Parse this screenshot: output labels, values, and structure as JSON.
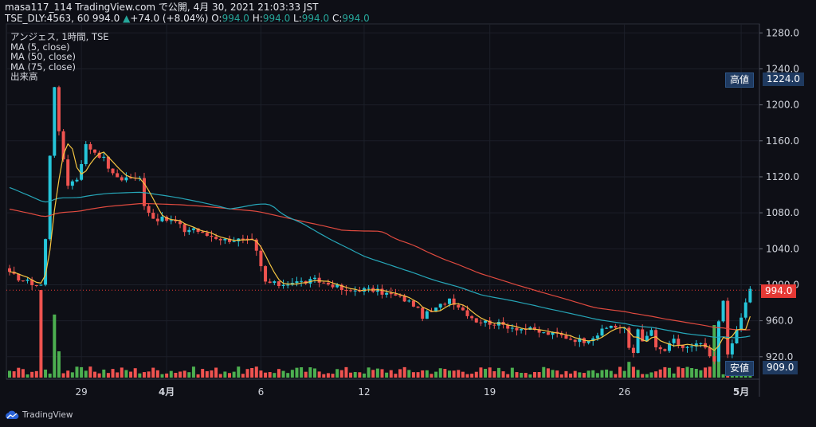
{
  "header": {
    "line1": "masa117_114 TradingView.com で公開, 4月 30, 2021 21:03:33 JST",
    "symbol": "TSE_DLY:4563, 60",
    "price": "994.0",
    "change": "+74.0 (+8.04%)",
    "o_label": "O:",
    "o": "994.0",
    "h_label": "H:",
    "h": "994.0",
    "l_label": "L:",
    "l": "994.0",
    "c_label": "C:",
    "c": "994.0"
  },
  "legend": {
    "title": "アンジェス, 1時間, TSE",
    "ma5": "MA (5, close)",
    "ma50": "MA (50, close)",
    "ma75": "MA (75, close)",
    "volume": "出来高"
  },
  "tags": {
    "high_label": "高値",
    "high_value": "1224.0",
    "current_value": "994.0",
    "low_label": "安値",
    "low_value": "909.0"
  },
  "brand": "TradingView",
  "colors": {
    "background": "#0e0f16",
    "up": "#26c6da",
    "down": "#ef5350",
    "vol_up": "#4caf50",
    "vol_down": "#ef5350",
    "ma5": "#f5c542",
    "ma50": "#26a6b8",
    "ma75": "#e04a3f"
  },
  "chart_data": {
    "type": "candlestick",
    "ylim": [
      895,
      1290
    ],
    "y_ticks": [
      1280,
      1240,
      1200,
      1160,
      1120,
      1080,
      1040,
      1000,
      960,
      920
    ],
    "x_tick_labels": [
      "29",
      "4月",
      "6",
      "12",
      "19",
      "26",
      "5月"
    ],
    "x_tick_bar_index": [
      16,
      35,
      56,
      79,
      107,
      137,
      163
    ],
    "total_bars": 166,
    "key_prices": [
      1012,
      1005,
      1000,
      1000,
      1050,
      1145,
      1222,
      1168,
      1112,
      1118,
      1155,
      1148,
      1140,
      1122,
      1118,
      1120,
      1117,
      1118,
      1090,
      1074,
      1072,
      1070,
      1060,
      1063,
      1056,
      1054,
      1050,
      1050,
      1048,
      1036,
      1003,
      1000,
      1003,
      1003,
      1005,
      1002,
      1000,
      992,
      995,
      994,
      990,
      986,
      978,
      965,
      973,
      985,
      972,
      960,
      958,
      955,
      952,
      950,
      946,
      945,
      940,
      938,
      945,
      955,
      950,
      953,
      950,
      930,
      925,
      935,
      929,
      927,
      938,
      930,
      930,
      935,
      920,
      913,
      960,
      985,
      920,
      994
    ],
    "key_positions": [
      0,
      3,
      6,
      7,
      8,
      9,
      10,
      11,
      13,
      15,
      17,
      19,
      21,
      23,
      25,
      27,
      28,
      29,
      30,
      32,
      35,
      37,
      39,
      41,
      43,
      45,
      48,
      51,
      54,
      55,
      57,
      60,
      63,
      66,
      68,
      70,
      72,
      75,
      78,
      81,
      84,
      87,
      90,
      92,
      95,
      98,
      101,
      104,
      107,
      110,
      113,
      116,
      119,
      122,
      125,
      128,
      131,
      134,
      137,
      140,
      143,
      138,
      139,
      141,
      143,
      146,
      148,
      150,
      152,
      154,
      156,
      157,
      158,
      159,
      160,
      165
    ],
    "volume_events": [
      {
        "bar": 7,
        "direction": "down",
        "height": 1.0
      },
      {
        "bar": 10,
        "direction": "up",
        "height": 0.72
      },
      {
        "bar": 11,
        "direction": "up",
        "height": 0.3
      },
      {
        "bar": 138,
        "direction": "up",
        "height": 0.18
      },
      {
        "bar": 157,
        "direction": "up",
        "height": 0.6
      },
      {
        "bar": 158,
        "direction": "up",
        "height": 0.52
      }
    ],
    "series": [
      {
        "name": "MA (5, close)"
      },
      {
        "name": "MA (50, close)"
      },
      {
        "name": "MA (75, close)"
      },
      {
        "name": "出来高"
      }
    ]
  }
}
